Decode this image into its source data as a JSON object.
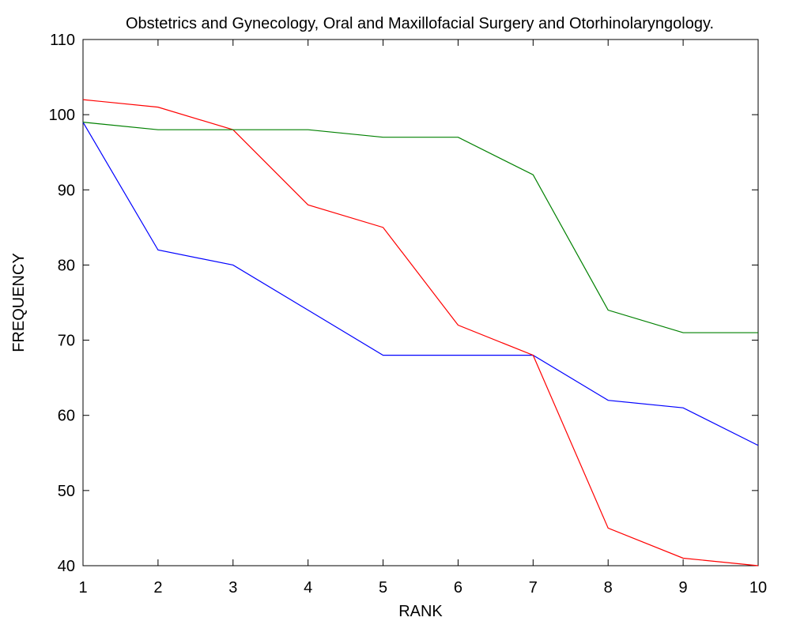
{
  "chart_data": {
    "type": "line",
    "title": "Obstetrics and Gynecology, Oral and Maxillofacial Surgery and Otorhinolaryngology.",
    "xlabel": "RANK",
    "ylabel": "FREQUENCY",
    "xlim": [
      1,
      10
    ],
    "ylim": [
      40,
      110
    ],
    "xticks": [
      1,
      2,
      3,
      4,
      5,
      6,
      7,
      8,
      9,
      10
    ],
    "yticks": [
      40,
      50,
      60,
      70,
      80,
      90,
      100,
      110
    ],
    "grid": false,
    "x": [
      1,
      2,
      3,
      4,
      5,
      6,
      7,
      8,
      9,
      10
    ],
    "series": [
      {
        "color": "#0000ff",
        "values": [
          99,
          82,
          80,
          74,
          68,
          68,
          68,
          62,
          61,
          56
        ]
      },
      {
        "color": "#ff0000",
        "values": [
          102,
          101,
          98,
          88,
          85,
          72,
          68,
          45,
          41,
          40
        ]
      },
      {
        "color": "#008000",
        "values": [
          99,
          98,
          98,
          98,
          97,
          97,
          92,
          74,
          71,
          71
        ]
      }
    ]
  }
}
